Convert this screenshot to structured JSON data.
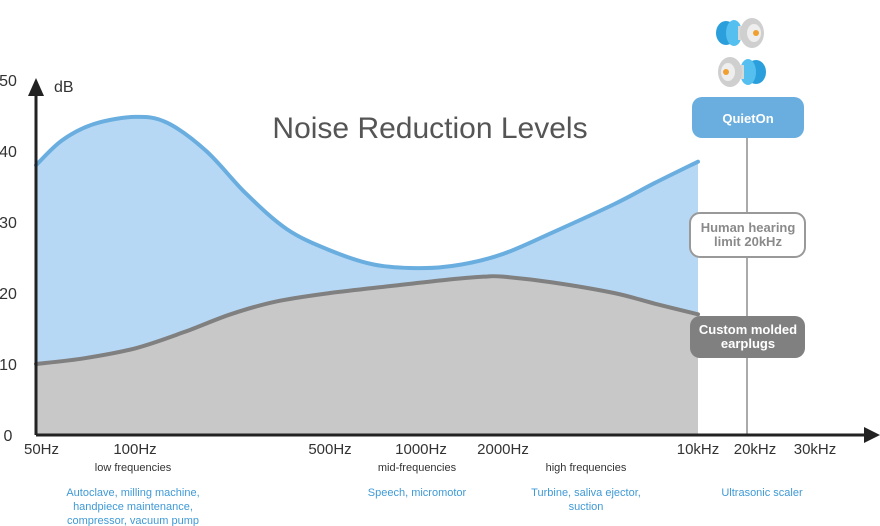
{
  "chart_data": {
    "type": "area",
    "title": "Noise Reduction Levels",
    "ylabel": "dB",
    "xlabel": "",
    "ylim": [
      0,
      50
    ],
    "y_ticks": [
      "0",
      "10",
      "20",
      "30",
      "40",
      "50"
    ],
    "x_ticks": [
      "50Hz",
      "100Hz",
      "500Hz",
      "1000Hz",
      "2000Hz",
      "10kHz",
      "20kHz",
      "30kHz"
    ],
    "x_scale": "log",
    "series": [
      {
        "name": "QuietOn",
        "color": "#6aaee0",
        "fill": "#b7d8f4",
        "points": [
          {
            "x": 50,
            "y": 38
          },
          {
            "x": 60,
            "y": 41.5
          },
          {
            "x": 75,
            "y": 43.8
          },
          {
            "x": 100,
            "y": 44.8
          },
          {
            "x": 130,
            "y": 44
          },
          {
            "x": 180,
            "y": 40
          },
          {
            "x": 250,
            "y": 34
          },
          {
            "x": 350,
            "y": 29
          },
          {
            "x": 500,
            "y": 26
          },
          {
            "x": 700,
            "y": 24
          },
          {
            "x": 1000,
            "y": 23.5
          },
          {
            "x": 1400,
            "y": 24
          },
          {
            "x": 2000,
            "y": 25.5
          },
          {
            "x": 3000,
            "y": 28.5
          },
          {
            "x": 5000,
            "y": 32.5
          },
          {
            "x": 7000,
            "y": 35.5
          },
          {
            "x": 10000,
            "y": 38.5
          }
        ]
      },
      {
        "name": "Custom molded earplugs",
        "color": "#808080",
        "fill": "#c8c8c8",
        "points": [
          {
            "x": 50,
            "y": 10
          },
          {
            "x": 70,
            "y": 10.8
          },
          {
            "x": 100,
            "y": 12.2
          },
          {
            "x": 150,
            "y": 14.5
          },
          {
            "x": 220,
            "y": 17
          },
          {
            "x": 320,
            "y": 18.8
          },
          {
            "x": 500,
            "y": 20
          },
          {
            "x": 800,
            "y": 21
          },
          {
            "x": 1200,
            "y": 21.8
          },
          {
            "x": 1700,
            "y": 22.3
          },
          {
            "x": 2000,
            "y": 22.3
          },
          {
            "x": 3000,
            "y": 21.5
          },
          {
            "x": 5000,
            "y": 20
          },
          {
            "x": 7000,
            "y": 18.5
          },
          {
            "x": 10000,
            "y": 17
          }
        ]
      }
    ],
    "annotations": {
      "human_limit": "Human hearing limit 20kHz",
      "human_limit_lines": [
        "Human hearing",
        "limit 20kHz"
      ],
      "quieton_label": "QuietOn",
      "molded_label_lines": [
        "Custom molded",
        "earplugs"
      ]
    },
    "bands": [
      {
        "label": "low frequencies",
        "examples": [
          "Autoclave, milling machine,",
          "handpiece maintenance,",
          "compressor, vacuum pump"
        ]
      },
      {
        "label": "mid-frequencies",
        "examples": [
          "Speech, micromotor"
        ]
      },
      {
        "label": "high frequencies",
        "examples": [
          "Turbine, saliva ejector,",
          "suction"
        ]
      },
      {
        "label": "",
        "examples": [
          "Ultrasonic scaler"
        ]
      }
    ],
    "colors": {
      "quieton_button": "#6aaee0",
      "molded_button": "#808080",
      "axis": "#222222",
      "limit_line": "#aaaaaa"
    },
    "icons": [
      "earplug-icon"
    ]
  }
}
